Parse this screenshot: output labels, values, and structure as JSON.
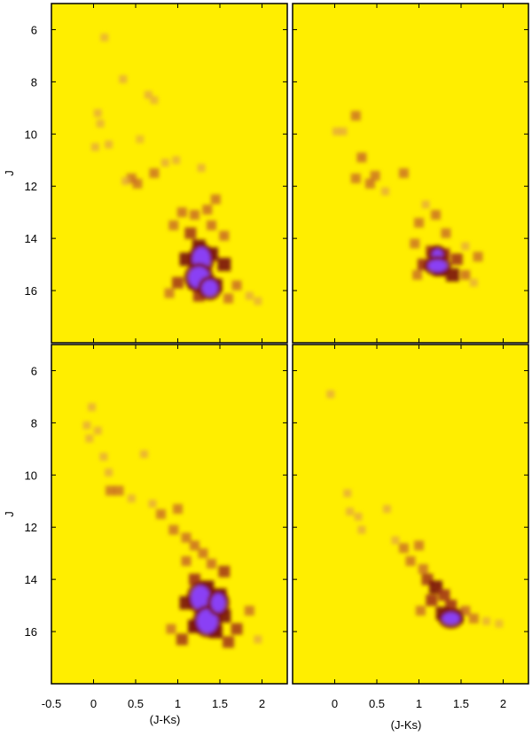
{
  "chart_data": [
    {
      "type": "heatmap",
      "panel": "top-left",
      "xlabel": "",
      "ylabel": "J",
      "xlim": [
        -0.5,
        2.3
      ],
      "ylim": [
        18,
        5.0
      ],
      "y_reversed": true,
      "yticks": [
        "6",
        "8",
        "10",
        "12",
        "14",
        "16"
      ],
      "xticks": [],
      "points": [
        [
          0.13,
          6.3,
          0.35
        ],
        [
          0.35,
          7.9,
          0.45
        ],
        [
          0.65,
          8.5,
          0.45
        ],
        [
          0.72,
          8.7,
          0.35
        ],
        [
          0.05,
          9.2,
          0.45
        ],
        [
          0.08,
          9.6,
          0.4
        ],
        [
          0.18,
          10.4,
          0.45
        ],
        [
          0.02,
          10.5,
          0.45
        ],
        [
          0.55,
          10.2,
          0.2
        ],
        [
          0.45,
          11.7,
          0.55
        ],
        [
          0.52,
          11.9,
          0.5
        ],
        [
          0.72,
          11.5,
          0.5
        ],
        [
          0.85,
          11.1,
          0.45
        ],
        [
          0.98,
          11.0,
          0.4
        ],
        [
          1.28,
          11.3,
          0.45
        ],
        [
          0.38,
          11.8,
          0.45
        ],
        [
          1.45,
          12.5,
          0.55
        ],
        [
          1.35,
          12.9,
          0.6
        ],
        [
          1.2,
          13.1,
          0.6
        ],
        [
          1.05,
          13.0,
          0.6
        ],
        [
          0.95,
          13.5,
          0.55
        ],
        [
          1.15,
          13.8,
          0.7
        ],
        [
          1.4,
          13.5,
          0.65
        ],
        [
          1.55,
          13.9,
          0.65
        ],
        [
          1.25,
          14.3,
          0.85
        ],
        [
          1.4,
          14.6,
          0.9
        ],
        [
          1.1,
          14.8,
          0.85
        ],
        [
          1.55,
          15.0,
          0.85
        ],
        [
          1.3,
          15.4,
          0.95
        ],
        [
          1.2,
          15.7,
          0.95
        ],
        [
          1.45,
          15.8,
          0.9
        ],
        [
          1.0,
          15.7,
          0.7
        ],
        [
          1.7,
          15.8,
          0.6
        ],
        [
          1.85,
          16.2,
          0.45
        ],
        [
          1.95,
          16.4,
          0.35
        ],
        [
          0.9,
          16.1,
          0.5
        ],
        [
          1.6,
          16.3,
          0.6
        ],
        [
          1.25,
          16.2,
          0.75
        ]
      ],
      "cores": [
        [
          1.28,
          14.8,
          0.07,
          0.35
        ],
        [
          1.25,
          15.5,
          0.09,
          0.3
        ],
        [
          1.38,
          15.9,
          0.06,
          0.2
        ]
      ]
    },
    {
      "type": "heatmap",
      "panel": "top-right",
      "xlabel": "",
      "ylabel": "",
      "xlim": [
        -0.5,
        2.3
      ],
      "ylim": [
        18,
        5.0
      ],
      "y_reversed": true,
      "yticks": [],
      "xticks": [],
      "points": [
        [
          0.25,
          9.3,
          0.5
        ],
        [
          0.02,
          9.9,
          0.45
        ],
        [
          0.1,
          9.9,
          0.45
        ],
        [
          0.32,
          10.9,
          0.6
        ],
        [
          0.25,
          11.7,
          0.5
        ],
        [
          0.42,
          11.9,
          0.55
        ],
        [
          0.48,
          11.6,
          0.5
        ],
        [
          0.6,
          12.2,
          0.45
        ],
        [
          0.82,
          11.5,
          0.5
        ],
        [
          1.08,
          12.7,
          0.45
        ],
        [
          1.2,
          13.1,
          0.55
        ],
        [
          1.0,
          13.4,
          0.5
        ],
        [
          1.32,
          13.8,
          0.55
        ],
        [
          0.95,
          14.2,
          0.5
        ],
        [
          1.15,
          14.5,
          0.8
        ],
        [
          1.3,
          14.6,
          0.8
        ],
        [
          1.45,
          14.8,
          0.75
        ],
        [
          1.05,
          15.0,
          0.8
        ],
        [
          1.25,
          15.2,
          0.95
        ],
        [
          1.4,
          15.4,
          0.85
        ],
        [
          1.55,
          15.4,
          0.6
        ],
        [
          1.7,
          14.7,
          0.5
        ],
        [
          1.55,
          14.3,
          0.45
        ],
        [
          0.98,
          15.4,
          0.55
        ],
        [
          1.65,
          15.7,
          0.4
        ]
      ],
      "cores": [
        [
          1.22,
          14.65,
          0.03,
          0.12
        ],
        [
          1.22,
          15.05,
          0.08,
          0.12
        ]
      ]
    },
    {
      "type": "heatmap",
      "panel": "bottom-left",
      "xlabel": "(J-Ks)",
      "ylabel": "J",
      "xlim": [
        -0.5,
        2.3
      ],
      "ylim": [
        18,
        5.0
      ],
      "y_reversed": true,
      "yticks": [
        "6",
        "8",
        "10",
        "12",
        "14",
        "16"
      ],
      "xticks": [
        "-0.5",
        "0",
        "0.5",
        "1",
        "1.5",
        "2"
      ],
      "points": [
        [
          -0.02,
          7.4,
          0.45
        ],
        [
          -0.08,
          8.1,
          0.45
        ],
        [
          0.05,
          8.3,
          0.45
        ],
        [
          -0.05,
          8.6,
          0.45
        ],
        [
          0.12,
          9.3,
          0.45
        ],
        [
          0.18,
          9.9,
          0.45
        ],
        [
          0.2,
          10.6,
          0.55
        ],
        [
          0.3,
          10.6,
          0.5
        ],
        [
          0.6,
          9.2,
          0.45
        ],
        [
          0.45,
          10.9,
          0.4
        ],
        [
          0.7,
          11.1,
          0.45
        ],
        [
          0.8,
          11.5,
          0.5
        ],
        [
          1.0,
          11.3,
          0.5
        ],
        [
          0.95,
          12.1,
          0.55
        ],
        [
          1.1,
          12.4,
          0.55
        ],
        [
          1.2,
          12.7,
          0.6
        ],
        [
          1.3,
          13.0,
          0.6
        ],
        [
          1.1,
          13.3,
          0.65
        ],
        [
          1.4,
          13.4,
          0.65
        ],
        [
          1.55,
          13.7,
          0.7
        ],
        [
          1.2,
          14.0,
          0.8
        ],
        [
          1.35,
          14.3,
          0.9
        ],
        [
          1.5,
          14.6,
          0.9
        ],
        [
          1.1,
          14.9,
          0.85
        ],
        [
          1.3,
          15.3,
          0.95
        ],
        [
          1.55,
          15.4,
          0.85
        ],
        [
          1.2,
          15.8,
          0.95
        ],
        [
          1.45,
          16.0,
          0.95
        ],
        [
          1.7,
          15.9,
          0.7
        ],
        [
          1.85,
          15.2,
          0.55
        ],
        [
          1.95,
          16.3,
          0.45
        ],
        [
          1.05,
          16.3,
          0.7
        ],
        [
          1.6,
          16.4,
          0.7
        ],
        [
          0.92,
          15.9,
          0.55
        ]
      ],
      "cores": [
        [
          1.27,
          14.7,
          0.08,
          0.35
        ],
        [
          1.35,
          15.6,
          0.09,
          0.35
        ],
        [
          1.48,
          14.9,
          0.05,
          0.25
        ]
      ]
    },
    {
      "type": "heatmap",
      "panel": "bottom-right",
      "xlabel": "(J-Ks)",
      "ylabel": "",
      "xlim": [
        -0.5,
        2.3
      ],
      "ylim": [
        18,
        5.0
      ],
      "y_reversed": true,
      "yticks": [],
      "xticks": [
        "0",
        "0.5",
        "1",
        "1.5",
        "2"
      ],
      "points": [
        [
          -0.05,
          6.9,
          0.45
        ],
        [
          0.15,
          10.7,
          0.45
        ],
        [
          0.18,
          11.4,
          0.45
        ],
        [
          0.28,
          11.6,
          0.45
        ],
        [
          0.32,
          12.1,
          0.45
        ],
        [
          0.62,
          11.3,
          0.45
        ],
        [
          0.72,
          12.5,
          0.45
        ],
        [
          0.82,
          12.8,
          0.5
        ],
        [
          0.9,
          13.3,
          0.55
        ],
        [
          1.0,
          12.7,
          0.5
        ],
        [
          1.05,
          13.6,
          0.55
        ],
        [
          1.1,
          14.0,
          0.7
        ],
        [
          1.2,
          14.3,
          0.85
        ],
        [
          1.3,
          14.6,
          0.75
        ],
        [
          1.15,
          14.8,
          0.8
        ],
        [
          1.38,
          15.0,
          0.8
        ],
        [
          1.28,
          15.3,
          0.85
        ],
        [
          1.45,
          15.4,
          0.9
        ],
        [
          1.55,
          15.2,
          0.65
        ],
        [
          1.65,
          15.5,
          0.5
        ],
        [
          1.8,
          15.6,
          0.35
        ],
        [
          1.95,
          15.7,
          0.25
        ],
        [
          1.02,
          15.2,
          0.55
        ]
      ],
      "cores": [
        [
          1.38,
          15.5,
          0.07,
          0.12
        ]
      ]
    }
  ]
}
